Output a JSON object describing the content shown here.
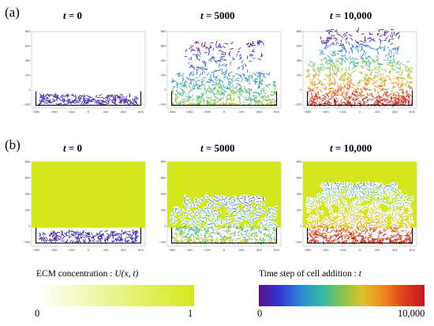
{
  "figure": {
    "panels": [
      {
        "label": "(a)",
        "subplots": [
          {
            "title_var": "t",
            "title_eq": " = ",
            "title_val": "0",
            "ecm": false,
            "stage": 0
          },
          {
            "title_var": "t",
            "title_eq": " = ",
            "title_val": "5000",
            "ecm": false,
            "stage": 1
          },
          {
            "title_var": "t",
            "title_eq": " = ",
            "title_val": "10,000",
            "ecm": false,
            "stage": 2
          }
        ]
      },
      {
        "label": "(b)",
        "subplots": [
          {
            "title_var": "t",
            "title_eq": " = ",
            "title_val": "0",
            "ecm": true,
            "stage": 0
          },
          {
            "title_var": "t",
            "title_eq": " = ",
            "title_val": "5000",
            "ecm": true,
            "stage": 1
          },
          {
            "title_var": "t",
            "title_eq": " = ",
            "title_val": "10,000",
            "ecm": true,
            "stage": 2
          }
        ]
      }
    ],
    "axes": {
      "x_ticks": [
        "−600",
        "−400",
        "−200",
        "0",
        "200",
        "400",
        "600"
      ],
      "y_ticks": [
        "800",
        "600",
        "400",
        "200",
        "0",
        "−200"
      ],
      "xlim": [
        -650,
        650
      ],
      "ylim": [
        -250,
        800
      ]
    },
    "colorbars": {
      "ecm": {
        "title_text": "ECM concentration : ",
        "title_math": "U(x, t)",
        "min_label": "0",
        "max_label": "1",
        "gradient": [
          "#ffffff",
          "#d6e81c"
        ]
      },
      "time": {
        "title_text": "Time step of cell addition : ",
        "title_math": "t",
        "min_label": "0",
        "max_label": "10,000",
        "gradient": [
          "#5b0f8f",
          "#3434d2",
          "#2f86d8",
          "#30b8a8",
          "#7fc64a",
          "#e0c12a",
          "#f08a1c",
          "#e0401a",
          "#c8141a"
        ]
      }
    },
    "colors": {
      "ecm_fill": "#d4e61c",
      "well_outline": "#000000"
    }
  }
}
